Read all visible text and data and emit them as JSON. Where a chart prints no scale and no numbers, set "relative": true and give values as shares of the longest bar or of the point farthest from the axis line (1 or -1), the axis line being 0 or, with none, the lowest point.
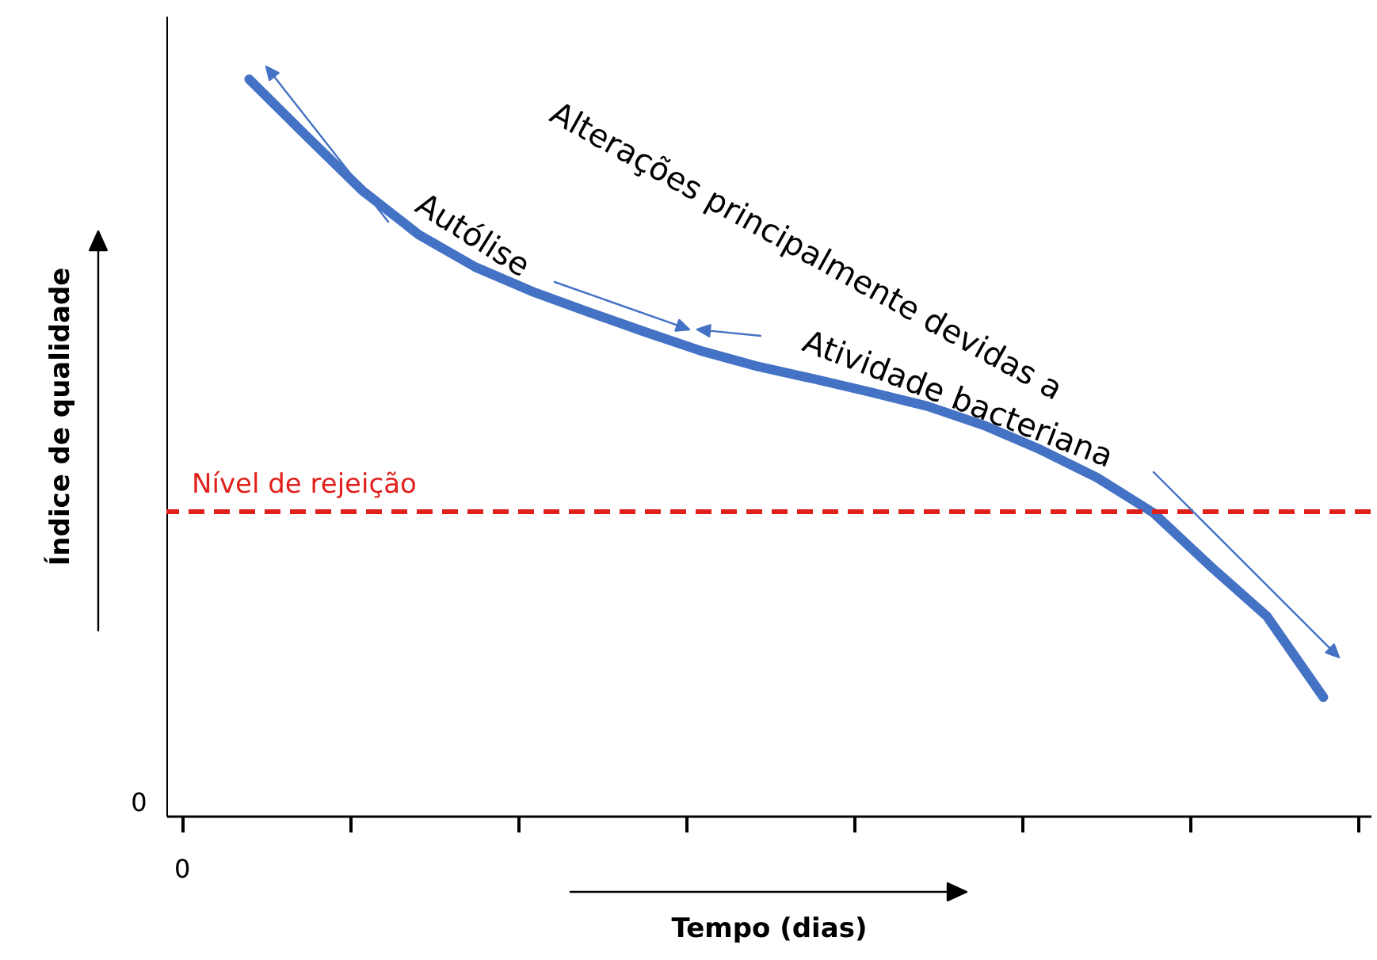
{
  "chart_data": {
    "type": "line",
    "relative": true,
    "xlabel": "Tempo (dias)",
    "ylabel": "Índice de qualidade",
    "categories": [
      null,
      null,
      null,
      null,
      null,
      null,
      null,
      null,
      null,
      null,
      null,
      null,
      null,
      null,
      null,
      null,
      null,
      null,
      null,
      null
    ],
    "series": [
      {
        "color": "#4472c4",
        "values": [
          1,
          0.924,
          0.849,
          0.789,
          0.745,
          0.712,
          0.684,
          0.657,
          0.631,
          0.61,
          0.593,
          0.575,
          0.556,
          0.53,
          0.497,
          0.459,
          0.411,
          0.339,
          0.271,
          0.161
        ]
      }
    ],
    "ref_lines": [
      {
        "axis": "y",
        "value": 0.413,
        "label": "Nível de rejeição",
        "color": "#e0201b",
        "line_style": "dashed"
      }
    ],
    "annotations": [
      "0",
      "0",
      "Autólise",
      "Alterações principalmente devidas a",
      "Atividade bacteriana"
    ],
    "grid": false,
    "marker": "none",
    "line_style": "solid"
  }
}
